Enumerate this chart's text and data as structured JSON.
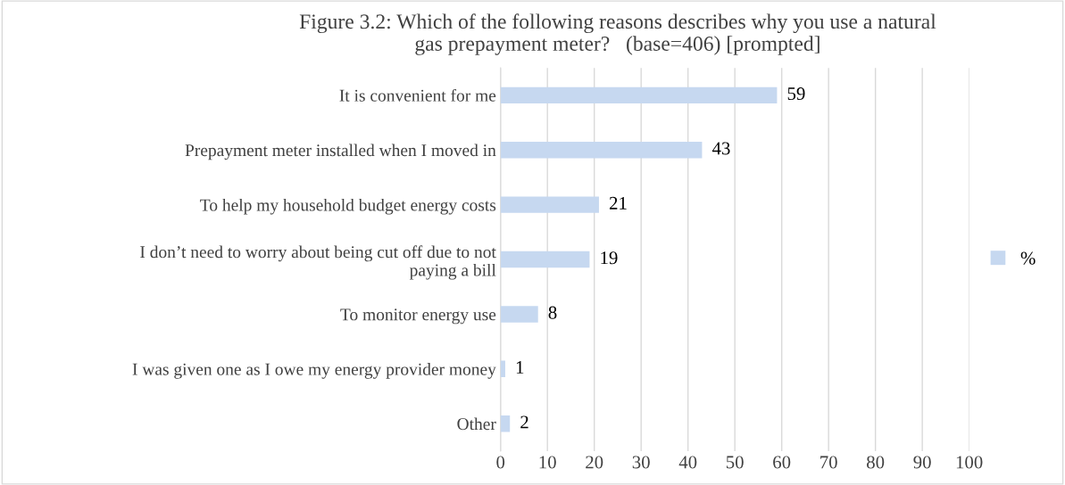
{
  "chart_data": {
    "type": "bar",
    "orientation": "horizontal",
    "title": "Figure 3.2: Which of the following reasons describes why you use a natural\ngas prepayment meter?   (base=406) [prompted]",
    "categories": [
      "It is convenient for me",
      "Prepayment meter installed when I moved in",
      "To help my household budget energy costs",
      "I don’t need to worry about being cut off due to not\npaying a bill",
      "To monitor energy use",
      "I was given one as I owe my energy provider money",
      "Other"
    ],
    "series": [
      {
        "name": "%",
        "color": "#c6d8f0",
        "values": [
          59,
          43,
          21,
          19,
          8,
          1,
          2
        ]
      }
    ],
    "xlim": [
      0,
      100
    ],
    "xticks": [
      0,
      10,
      20,
      30,
      40,
      50,
      60,
      70,
      80,
      90,
      100
    ],
    "grid": "x",
    "legend": "right",
    "data_labels": true
  }
}
